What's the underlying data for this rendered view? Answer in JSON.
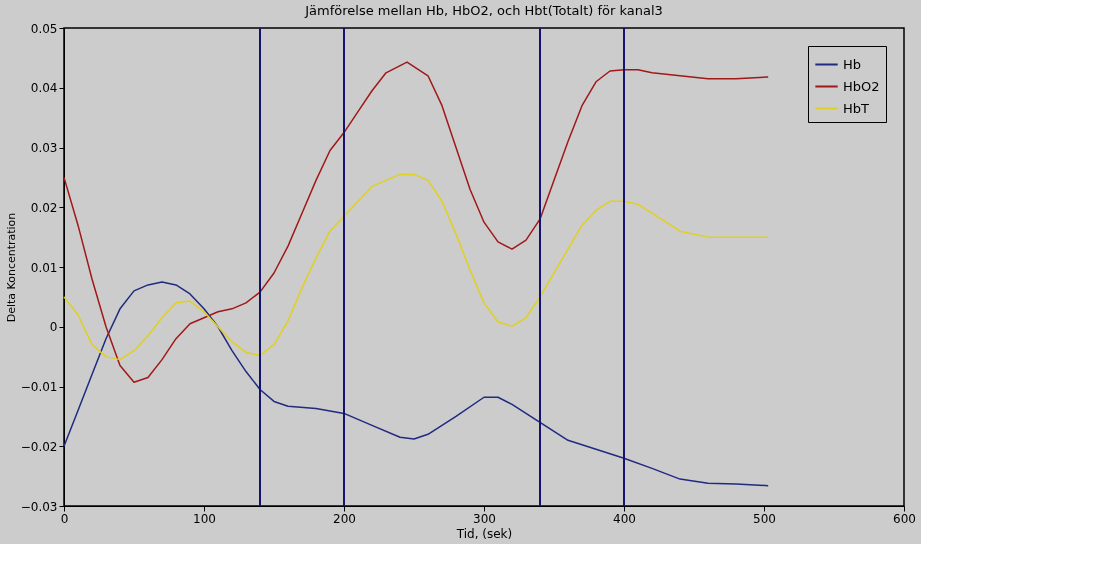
{
  "chart_data": {
    "type": "line",
    "title": "Jämförelse mellan Hb, HbO2, och Hbt(Totalt) för kanal3",
    "xlabel": "Tid, (sek)",
    "ylabel": "Delta Koncentration",
    "xlim": [
      0,
      600
    ],
    "xticks": [
      0,
      100,
      200,
      300,
      400,
      500,
      600
    ],
    "ylim": [
      -0.03,
      0.05
    ],
    "yticks": [
      -0.03,
      -0.02,
      -0.01,
      0,
      0.01,
      0.02,
      0.03,
      0.04,
      0.05
    ],
    "legend": "top right",
    "grid": false,
    "line_style": "solid",
    "series": [
      {
        "name": "Hb",
        "color": "#202a80",
        "x": [
          0,
          10,
          20,
          30,
          40,
          50,
          60,
          70,
          80,
          90,
          100,
          110,
          120,
          130,
          140,
          150,
          160,
          180,
          200,
          220,
          240,
          250,
          260,
          280,
          300,
          310,
          320,
          340,
          360,
          380,
          400,
          420,
          440,
          460,
          480,
          503
        ],
        "values": [
          -0.02,
          -0.014,
          -0.008,
          -0.002,
          0.003,
          0.006,
          0.007,
          0.0075,
          0.007,
          0.0055,
          0.003,
          0.0,
          -0.004,
          -0.0075,
          -0.0105,
          -0.0125,
          -0.0133,
          -0.0137,
          -0.0145,
          -0.0165,
          -0.0185,
          -0.0188,
          -0.018,
          -0.015,
          -0.0118,
          -0.0118,
          -0.013,
          -0.016,
          -0.019,
          -0.0205,
          -0.022,
          -0.0237,
          -0.0255,
          -0.0262,
          -0.0263,
          -0.0266
        ]
      },
      {
        "name": "HbO2",
        "color": "#a01818",
        "x": [
          0,
          10,
          20,
          30,
          40,
          50,
          60,
          70,
          80,
          90,
          100,
          110,
          120,
          130,
          140,
          150,
          160,
          170,
          180,
          190,
          200,
          210,
          220,
          230,
          245,
          260,
          270,
          280,
          290,
          300,
          310,
          320,
          330,
          340,
          350,
          360,
          370,
          380,
          390,
          400,
          410,
          420,
          440,
          460,
          480,
          503
        ],
        "values": [
          0.025,
          0.017,
          0.008,
          0.0,
          -0.0065,
          -0.0093,
          -0.0085,
          -0.0055,
          -0.002,
          0.0005,
          0.0015,
          0.0025,
          0.003,
          0.004,
          0.0058,
          0.009,
          0.0135,
          0.019,
          0.0245,
          0.0295,
          0.0325,
          0.036,
          0.0395,
          0.0425,
          0.0443,
          0.042,
          0.037,
          0.03,
          0.023,
          0.0175,
          0.0142,
          0.013,
          0.0145,
          0.018,
          0.0245,
          0.031,
          0.037,
          0.041,
          0.0428,
          0.043,
          0.043,
          0.0425,
          0.042,
          0.0415,
          0.0415,
          0.0418
        ]
      },
      {
        "name": "HbT",
        "color": "#e0d020",
        "x": [
          0,
          10,
          20,
          30,
          40,
          50,
          60,
          70,
          80,
          90,
          100,
          110,
          120,
          130,
          140,
          150,
          160,
          170,
          180,
          190,
          200,
          210,
          220,
          240,
          250,
          260,
          270,
          280,
          290,
          300,
          310,
          320,
          330,
          340,
          350,
          360,
          370,
          380,
          390,
          400,
          410,
          420,
          440,
          460,
          480,
          503
        ],
        "values": [
          0.005,
          0.002,
          -0.003,
          -0.005,
          -0.0055,
          -0.004,
          -0.0015,
          0.0015,
          0.004,
          0.0043,
          0.0025,
          0.0,
          -0.0025,
          -0.0043,
          -0.0048,
          -0.003,
          0.001,
          0.0065,
          0.0115,
          0.016,
          0.0185,
          0.021,
          0.0235,
          0.0255,
          0.0255,
          0.0245,
          0.021,
          0.0155,
          0.0095,
          0.004,
          0.0008,
          0.0001,
          0.0015,
          0.005,
          0.009,
          0.013,
          0.017,
          0.0195,
          0.021,
          0.021,
          0.0205,
          0.019,
          0.016,
          0.015,
          0.015,
          0.015
        ]
      }
    ],
    "ref_lines": [
      {
        "axis": "x",
        "value": 140,
        "color": "#14146e"
      },
      {
        "axis": "x",
        "value": 200,
        "color": "#14146e"
      },
      {
        "axis": "x",
        "value": 340,
        "color": "#14146e"
      },
      {
        "axis": "x",
        "value": 400,
        "color": "#14146e"
      }
    ]
  }
}
